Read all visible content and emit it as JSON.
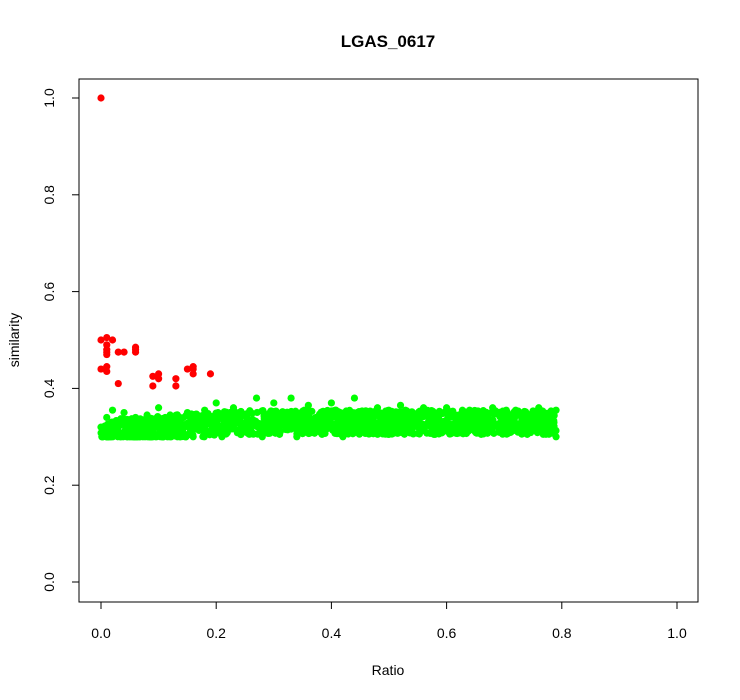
{
  "chart_data": {
    "type": "scatter",
    "title": "LGAS_0617",
    "xlabel": "Ratio",
    "ylabel": "similarity",
    "xlim": [
      0,
      1
    ],
    "ylim": [
      0,
      1
    ],
    "xticks": [
      "0.0",
      "0.2",
      "0.4",
      "0.6",
      "0.8",
      "1.0"
    ],
    "yticks": [
      "0.0",
      "0.2",
      "0.4",
      "0.6",
      "0.8",
      "1.0"
    ],
    "grid": false,
    "legend": "none",
    "series": [
      {
        "color": "#ff0000",
        "points": [
          [
            0.0,
            1.0
          ],
          [
            0.0,
            0.5
          ],
          [
            0.0,
            0.44
          ],
          [
            0.01,
            0.505
          ],
          [
            0.01,
            0.49
          ],
          [
            0.01,
            0.48
          ],
          [
            0.01,
            0.475
          ],
          [
            0.01,
            0.47
          ],
          [
            0.01,
            0.445
          ],
          [
            0.01,
            0.435
          ],
          [
            0.02,
            0.5
          ],
          [
            0.03,
            0.475
          ],
          [
            0.03,
            0.41
          ],
          [
            0.04,
            0.475
          ],
          [
            0.06,
            0.485
          ],
          [
            0.06,
            0.48
          ],
          [
            0.06,
            0.475
          ],
          [
            0.09,
            0.425
          ],
          [
            0.09,
            0.405
          ],
          [
            0.1,
            0.43
          ],
          [
            0.1,
            0.42
          ],
          [
            0.13,
            0.42
          ],
          [
            0.13,
            0.405
          ],
          [
            0.15,
            0.44
          ],
          [
            0.16,
            0.445
          ],
          [
            0.16,
            0.44
          ],
          [
            0.16,
            0.43
          ],
          [
            0.19,
            0.43
          ]
        ]
      },
      {
        "color": "#00ff00",
        "description_range": {
          "x": [
            0.0,
            0.79
          ],
          "y": [
            0.3,
            0.38
          ]
        },
        "points": [
          [
            0.0,
            0.32
          ],
          [
            0.01,
            0.31
          ],
          [
            0.01,
            0.3
          ],
          [
            0.01,
            0.34
          ],
          [
            0.02,
            0.355
          ],
          [
            0.02,
            0.33
          ],
          [
            0.03,
            0.32
          ],
          [
            0.03,
            0.305
          ],
          [
            0.04,
            0.35
          ],
          [
            0.05,
            0.31
          ],
          [
            0.06,
            0.34
          ],
          [
            0.07,
            0.305
          ],
          [
            0.08,
            0.345
          ],
          [
            0.09,
            0.3
          ],
          [
            0.1,
            0.36
          ],
          [
            0.11,
            0.31
          ],
          [
            0.12,
            0.345
          ],
          [
            0.14,
            0.305
          ],
          [
            0.15,
            0.35
          ],
          [
            0.16,
            0.3
          ],
          [
            0.18,
            0.355
          ],
          [
            0.19,
            0.31
          ],
          [
            0.2,
            0.37
          ],
          [
            0.21,
            0.3
          ],
          [
            0.23,
            0.36
          ],
          [
            0.25,
            0.31
          ],
          [
            0.27,
            0.38
          ],
          [
            0.28,
            0.3
          ],
          [
            0.3,
            0.37
          ],
          [
            0.31,
            0.305
          ],
          [
            0.33,
            0.38
          ],
          [
            0.34,
            0.3
          ],
          [
            0.36,
            0.365
          ],
          [
            0.38,
            0.31
          ],
          [
            0.4,
            0.37
          ],
          [
            0.42,
            0.3
          ],
          [
            0.44,
            0.38
          ],
          [
            0.46,
            0.31
          ],
          [
            0.48,
            0.36
          ],
          [
            0.5,
            0.305
          ],
          [
            0.52,
            0.365
          ],
          [
            0.54,
            0.31
          ],
          [
            0.56,
            0.36
          ],
          [
            0.58,
            0.305
          ],
          [
            0.6,
            0.36
          ],
          [
            0.62,
            0.31
          ],
          [
            0.64,
            0.355
          ],
          [
            0.66,
            0.305
          ],
          [
            0.68,
            0.36
          ],
          [
            0.7,
            0.31
          ],
          [
            0.72,
            0.355
          ],
          [
            0.74,
            0.305
          ],
          [
            0.76,
            0.36
          ],
          [
            0.78,
            0.31
          ],
          [
            0.79,
            0.355
          ],
          [
            0.79,
            0.3
          ]
        ]
      }
    ]
  }
}
